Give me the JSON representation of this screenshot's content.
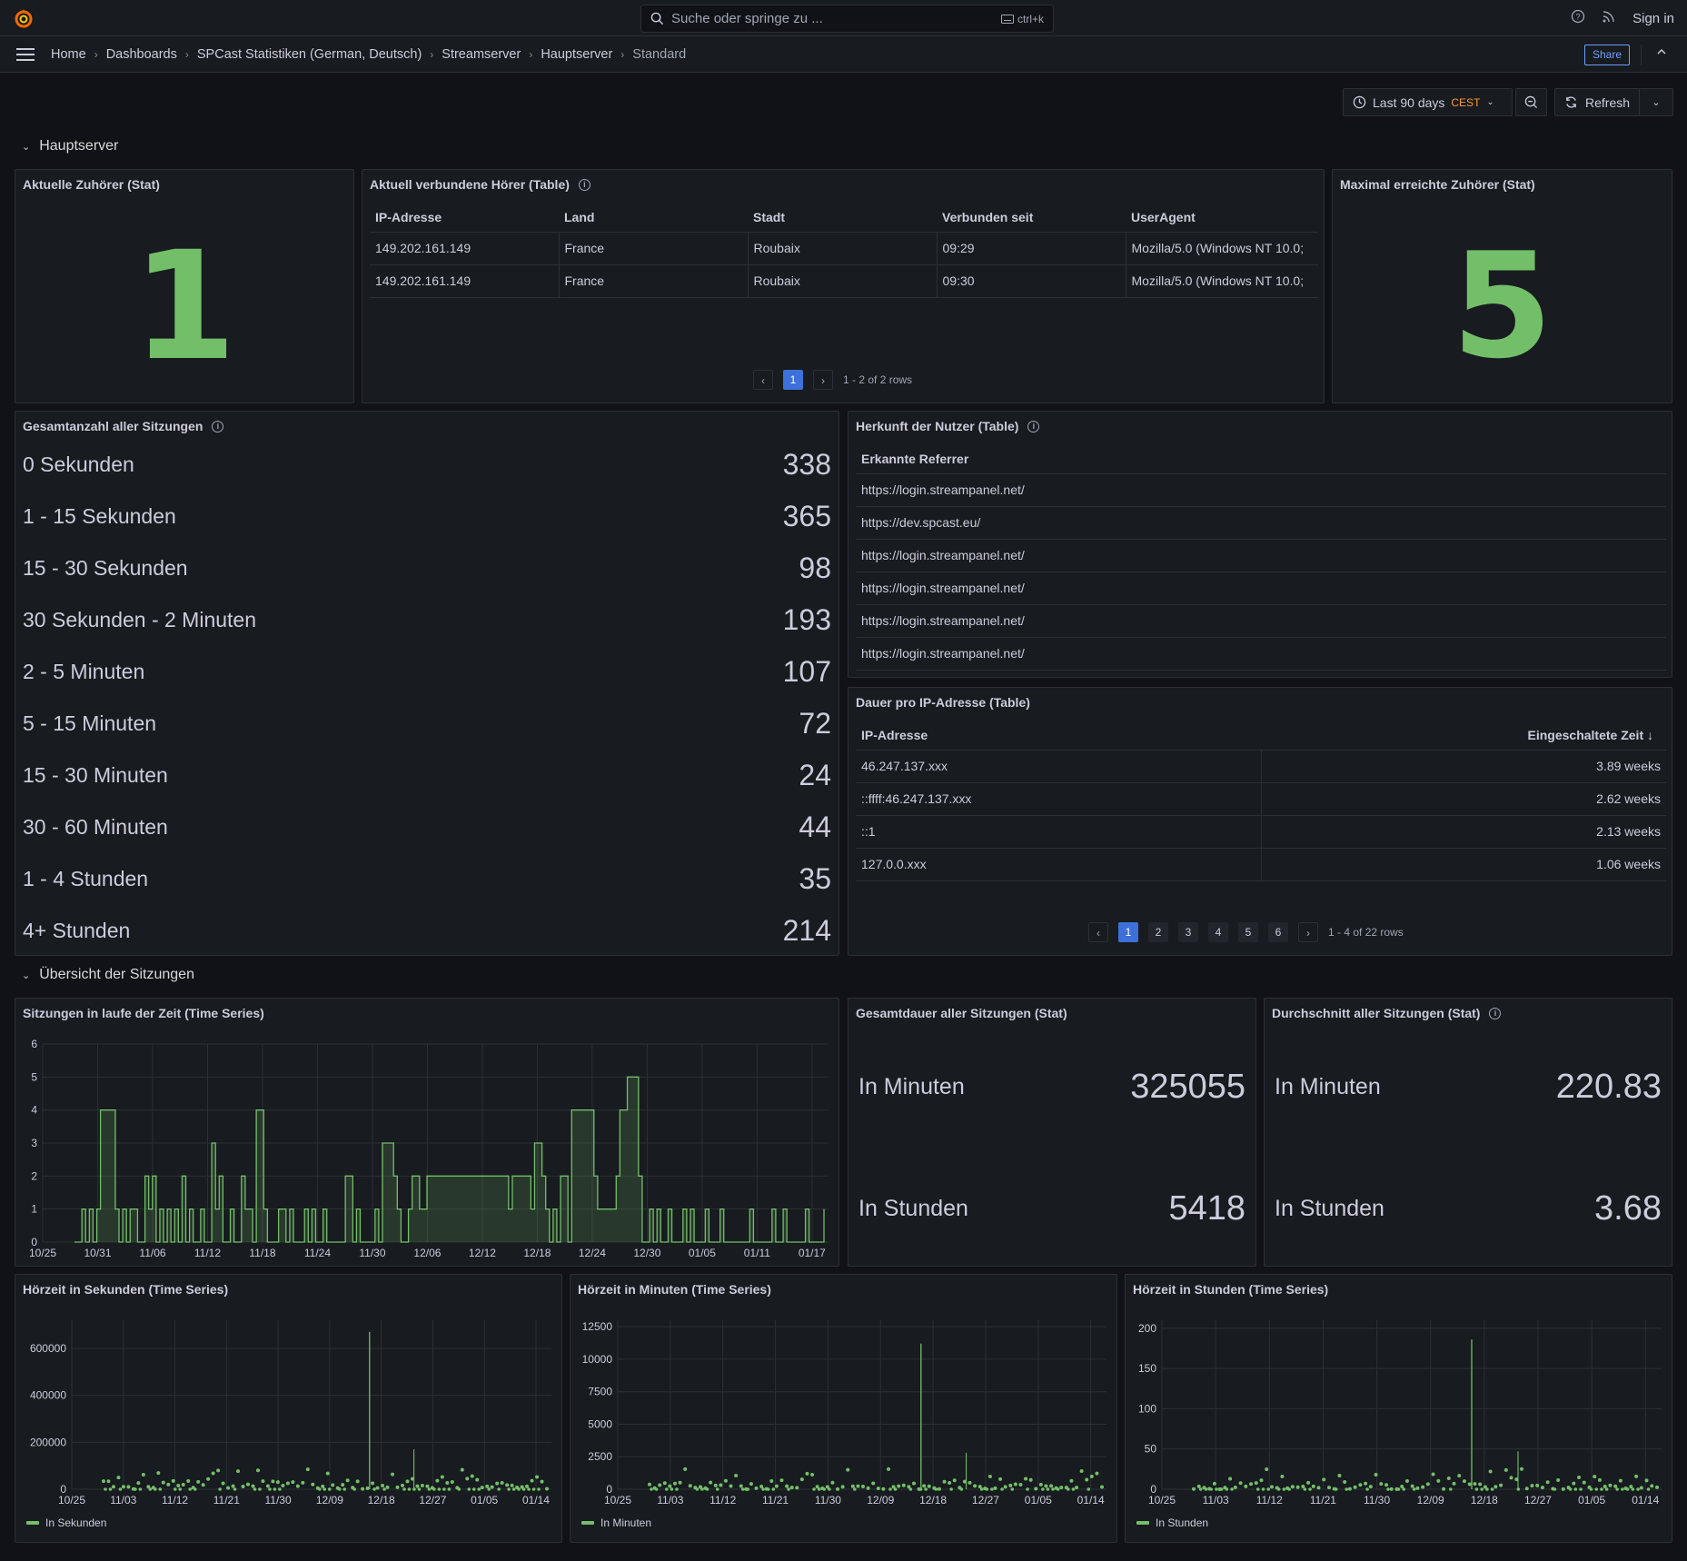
{
  "topbar": {
    "search_placeholder": "Suche oder springe zu ...",
    "search_shortcut": "ctrl+k",
    "sign_in": "Sign in"
  },
  "breadcrumb": [
    "Home",
    "Dashboards",
    "SPCast Statistiken (German, Deutsch)",
    "Streamserver",
    "Hauptserver",
    "Standard"
  ],
  "nav": {
    "share_label": "Share"
  },
  "time_picker": {
    "range": "Last 90 days",
    "timezone": "CEST",
    "refresh_label": "Refresh"
  },
  "rows": {
    "hauptserver": "Hauptserver",
    "uebersicht": "Übersicht der Sitzungen"
  },
  "panels": {
    "aktuelle_zuhoerer": {
      "title": "Aktuelle Zuhörer (Stat)",
      "value": "1"
    },
    "verbundene_hoerer": {
      "title": "Aktuell verbundene Hörer (Table)",
      "columns": [
        "IP-Adresse",
        "Land",
        "Stadt",
        "Verbunden seit",
        "UserAgent"
      ],
      "rows": [
        [
          "149.202.161.149",
          "France",
          "Roubaix",
          "09:29",
          "Mozilla/5.0 (Windows NT 10.0;"
        ],
        [
          "149.202.161.149",
          "France",
          "Roubaix",
          "09:30",
          "Mozilla/5.0 (Windows NT 10.0;"
        ]
      ],
      "pages": [
        "1"
      ],
      "rows_info": "1 - 2 of 2 rows"
    },
    "maximal_zuhoerer": {
      "title": "Maximal erreichte Zuhörer (Stat)",
      "value": "5"
    },
    "gesamtanzahl": {
      "title": "Gesamtanzahl aller Sitzungen",
      "items": [
        {
          "label": "0 Sekunden",
          "value": "338"
        },
        {
          "label": "1 - 15 Sekunden",
          "value": "365"
        },
        {
          "label": "15 - 30 Sekunden",
          "value": "98"
        },
        {
          "label": "30 Sekunden - 2 Minuten",
          "value": "193"
        },
        {
          "label": "2 - 5 Minuten",
          "value": "107"
        },
        {
          "label": "5 - 15 Minuten",
          "value": "72"
        },
        {
          "label": "15 - 30 Minuten",
          "value": "24"
        },
        {
          "label": "30 - 60 Minuten",
          "value": "44"
        },
        {
          "label": "1 - 4 Stunden",
          "value": "35"
        },
        {
          "label": "4+ Stunden",
          "value": "214"
        }
      ]
    },
    "herkunft": {
      "title": "Herkunft der Nutzer (Table)",
      "column": "Erkannte Referrer",
      "rows": [
        "https://login.streampanel.net/",
        "https://dev.spcast.eu/",
        "https://login.streampanel.net/",
        "https://login.streampanel.net/",
        "https://login.streampanel.net/",
        "https://login.streampanel.net/"
      ]
    },
    "dauer": {
      "title": "Dauer pro IP-Adresse (Table)",
      "columns": [
        "IP-Adresse",
        "Eingeschaltete Zeit"
      ],
      "rows": [
        [
          "46.247.137.xxx",
          "3.89 weeks"
        ],
        [
          "::ffff:46.247.137.xxx",
          "2.62 weeks"
        ],
        [
          "::1",
          "2.13 weeks"
        ],
        [
          "127.0.0.xxx",
          "1.06 weeks"
        ]
      ],
      "pages": [
        "1",
        "2",
        "3",
        "4",
        "5",
        "6"
      ],
      "rows_info": "1 - 4 of 22 rows"
    },
    "gesamtdauer": {
      "title": "Gesamtdauer aller Sitzungen (Stat)",
      "items": [
        {
          "label": "In Minuten",
          "value": "325055"
        },
        {
          "label": "In Stunden",
          "value": "5418"
        }
      ]
    },
    "durchschnitt": {
      "title": "Durchschnitt aller Sitzungen (Stat)",
      "items": [
        {
          "label": "In Minuten",
          "value": "220.83"
        },
        {
          "label": "In Stunden",
          "value": "3.68"
        }
      ]
    }
  },
  "chart_data": [
    {
      "type": "area",
      "title": "Sitzungen in laufe der Zeit (Time Series)",
      "x_ticks": [
        "10/25",
        "10/31",
        "11/06",
        "11/12",
        "11/18",
        "11/24",
        "11/30",
        "12/06",
        "12/12",
        "12/18",
        "12/24",
        "12/30",
        "01/05",
        "01/11",
        "01/17"
      ],
      "y_ticks": [
        "0",
        "1",
        "2",
        "3",
        "4",
        "5",
        "6"
      ],
      "ylim": [
        0,
        6
      ],
      "color": "#73bf69",
      "series": [
        {
          "values": [
            0,
            0,
            1,
            0,
            1,
            0,
            1,
            4,
            4,
            4,
            4,
            1,
            0,
            1,
            0,
            1,
            1,
            0,
            0,
            2,
            1,
            2,
            0,
            1,
            0,
            1,
            0,
            1,
            0,
            2,
            0,
            1,
            0,
            0,
            1,
            0,
            0,
            3,
            1,
            2,
            0,
            0,
            1,
            0,
            0,
            2,
            1,
            1,
            0,
            4,
            4,
            1,
            0,
            0,
            0,
            1,
            1,
            0,
            1,
            0,
            0,
            0,
            1,
            0,
            1,
            0,
            0,
            1,
            0,
            0,
            0,
            0,
            0,
            2,
            2,
            0,
            1,
            0,
            0,
            0,
            0,
            1,
            0,
            3,
            3,
            3,
            2,
            1,
            0,
            0,
            1,
            2,
            2,
            1,
            1,
            2,
            2,
            2,
            2,
            2,
            2,
            2,
            2,
            2,
            2,
            2,
            2,
            2,
            2,
            2,
            2,
            2,
            2,
            2,
            2,
            2,
            2,
            1,
            2,
            2,
            2,
            2,
            2,
            1,
            3,
            3,
            2,
            1,
            0,
            1,
            0,
            2,
            2,
            0,
            4,
            4,
            4,
            4,
            4,
            4,
            2,
            1,
            1,
            1,
            1,
            1,
            2,
            4,
            4,
            5,
            5,
            5,
            2,
            0,
            0,
            1,
            0,
            1,
            0,
            0,
            1,
            0,
            0,
            0,
            1,
            0,
            1,
            0,
            0,
            0,
            1,
            0,
            0,
            0,
            1,
            0,
            0,
            0,
            0,
            0,
            0,
            0,
            1,
            0,
            0,
            0,
            0,
            0,
            1,
            0,
            0,
            1,
            0,
            0,
            0,
            0,
            0,
            1,
            0,
            0,
            0,
            0,
            1
          ]
        }
      ]
    },
    {
      "type": "scatter",
      "title": "Hörzeit in Sekunden (Time Series)",
      "x_ticks": [
        "10/25",
        "11/03",
        "11/12",
        "11/21",
        "11/30",
        "12/09",
        "12/18",
        "12/27",
        "01/05",
        "01/14"
      ],
      "y_ticks": [
        "0",
        "200000",
        "400000",
        "600000"
      ],
      "ylim": [
        0,
        720000
      ],
      "series": [
        {
          "name": "In Sekunden",
          "spike_at": 0.6,
          "spike_value": 670000,
          "spike2_at": 0.7,
          "spike2_value": 170000
        }
      ]
    },
    {
      "type": "scatter",
      "title": "Hörzeit in Minuten (Time Series)",
      "x_ticks": [
        "10/25",
        "11/03",
        "11/12",
        "11/21",
        "11/30",
        "12/09",
        "12/18",
        "12/27",
        "01/05",
        "01/14"
      ],
      "y_ticks": [
        "0",
        "2500",
        "5000",
        "7500",
        "10000",
        "12500"
      ],
      "ylim": [
        0,
        13000
      ],
      "series": [
        {
          "name": "In Minuten",
          "spike_at": 0.6,
          "spike_value": 11200,
          "spike2_at": 0.7,
          "spike2_value": 2800
        }
      ]
    },
    {
      "type": "scatter",
      "title": "Hörzeit in Stunden (Time Series)",
      "x_ticks": [
        "10/25",
        "11/03",
        "11/12",
        "11/21",
        "11/30",
        "12/09",
        "12/18",
        "12/27",
        "01/05",
        "01/14"
      ],
      "y_ticks": [
        "0",
        "50",
        "100",
        "150",
        "200"
      ],
      "ylim": [
        0,
        210
      ],
      "series": [
        {
          "name": "In Stunden",
          "spike_at": 0.6,
          "spike_value": 186,
          "spike2_at": 0.7,
          "spike2_value": 47
        }
      ]
    }
  ]
}
